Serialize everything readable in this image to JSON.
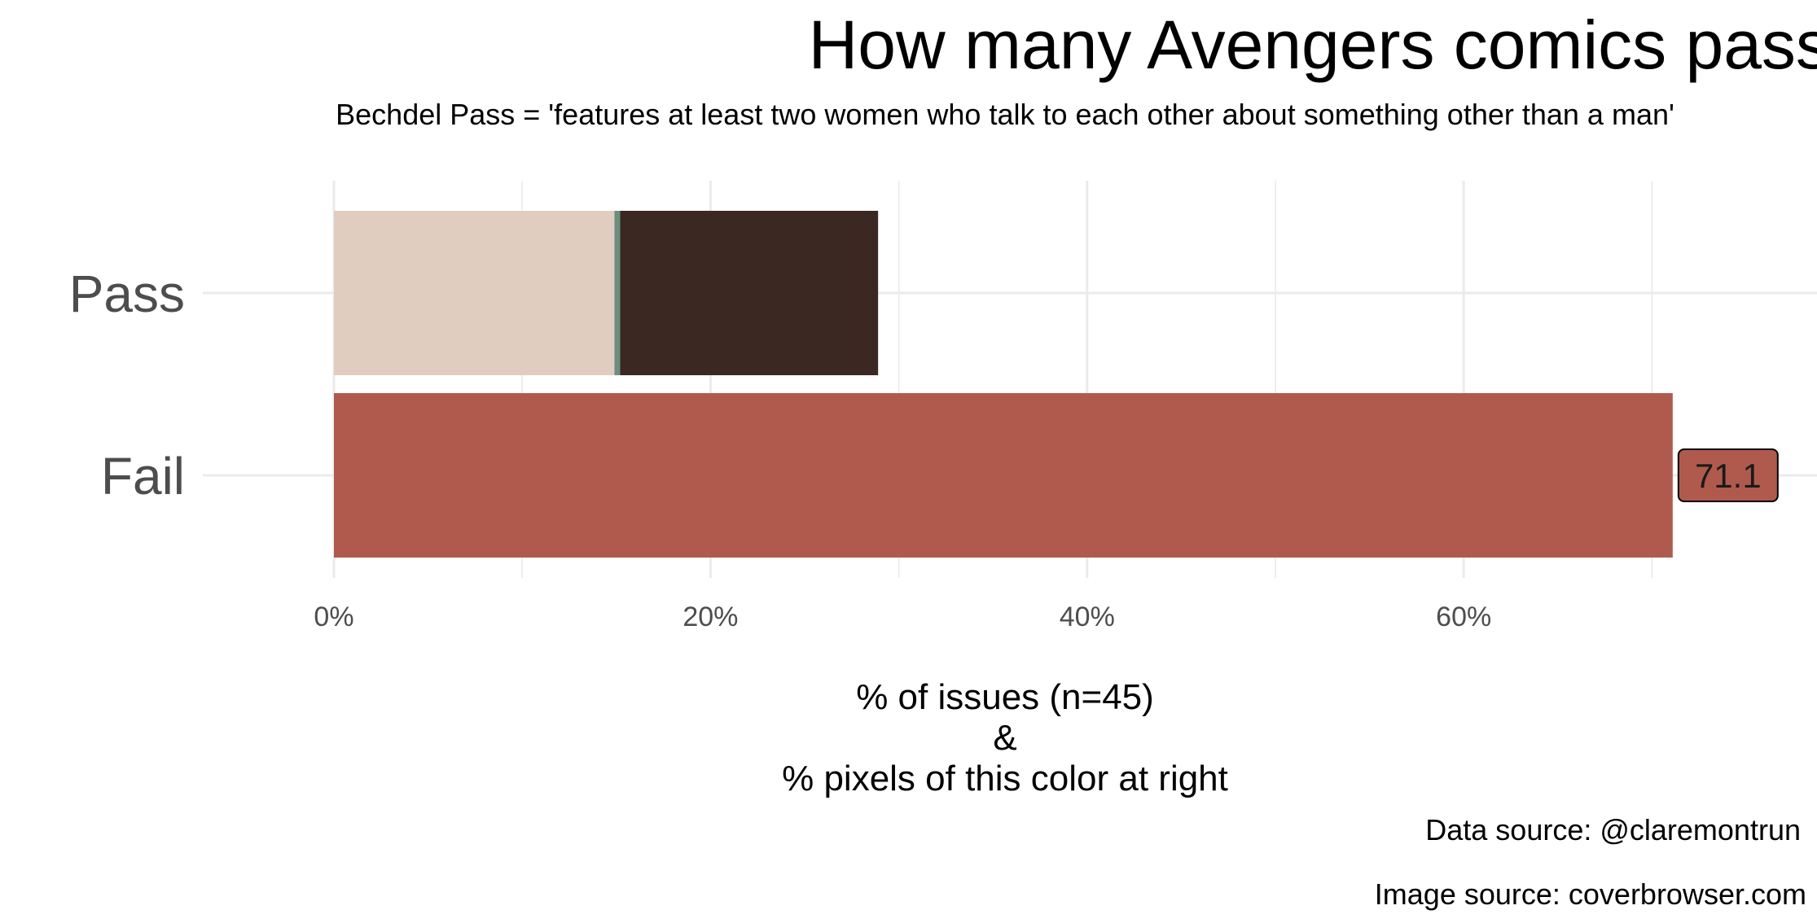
{
  "chart_data": {
    "type": "bar",
    "orientation": "horizontal",
    "stacked": true,
    "title": "How many Avengers comics pass the Bechdel test?",
    "subtitle": "Bechdel Pass = 'features at least two women who talk to each other about something other than a man'",
    "xlabel_lines": [
      "% of issues (n=45)",
      "&",
      "% pixels of this color at right"
    ],
    "ylabel": "",
    "categories": [
      "Pass",
      "Fail"
    ],
    "xlim": [
      0,
      76
    ],
    "x_ticks": [
      0,
      20,
      40,
      60
    ],
    "x_tick_labels": [
      "0%",
      "20%",
      "40%",
      "60%"
    ],
    "grid": true,
    "legend": "none",
    "bars": [
      {
        "category": "Pass",
        "segments": [
          {
            "value": 14.9,
            "color": "#e1cdbf"
          },
          {
            "value": 0.3,
            "color": "#6b8f7e"
          },
          {
            "value": 13.7,
            "color": "#3b2822"
          }
        ]
      },
      {
        "category": "Fail",
        "segments": [
          {
            "value": 71.1,
            "color": "#b05a4e"
          }
        ],
        "label": "71.1"
      }
    ],
    "captions": [
      "Data source: @claremontrun",
      "Image source: coverbrowser.com"
    ]
  }
}
